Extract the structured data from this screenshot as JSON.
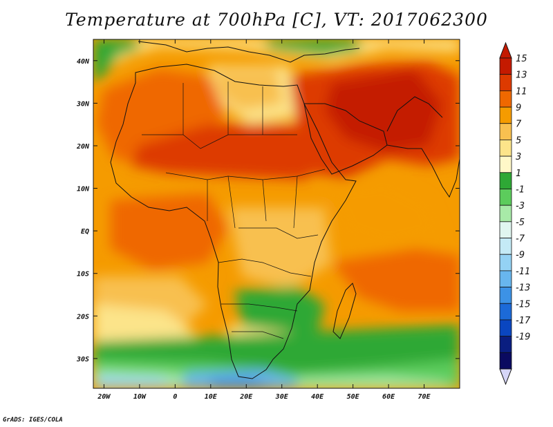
{
  "title": "Temperature at 700hPa [C], VT: 2017062300",
  "credit": "GrADS: IGES/COLA",
  "map": {
    "lon_range": [
      -23,
      80
    ],
    "lat_range": [
      -37,
      45
    ],
    "lat_ticks": [
      {
        "value": 40,
        "label": "40N"
      },
      {
        "value": 30,
        "label": "30N"
      },
      {
        "value": 20,
        "label": "20N"
      },
      {
        "value": 10,
        "label": "10N"
      },
      {
        "value": 0,
        "label": "EQ"
      },
      {
        "value": -10,
        "label": "10S"
      },
      {
        "value": -20,
        "label": "20S"
      },
      {
        "value": -30,
        "label": "30S"
      }
    ],
    "lon_ticks": [
      {
        "value": -20,
        "label": "20W"
      },
      {
        "value": -10,
        "label": "10W"
      },
      {
        "value": 0,
        "label": "0"
      },
      {
        "value": 10,
        "label": "10E"
      },
      {
        "value": 20,
        "label": "20E"
      },
      {
        "value": 30,
        "label": "30E"
      },
      {
        "value": 40,
        "label": "40E"
      },
      {
        "value": 50,
        "label": "50E"
      },
      {
        "value": 60,
        "label": "60E"
      },
      {
        "value": 70,
        "label": "70E"
      }
    ]
  },
  "colorbar": {
    "levels": [
      "15",
      "13",
      "11",
      "9",
      "7",
      "5",
      "3",
      "1",
      "-1",
      "-3",
      "-5",
      "-7",
      "-9",
      "-11",
      "-13",
      "-15",
      "-17",
      "-19"
    ],
    "colors": [
      "#c41a00",
      "#dd3a00",
      "#ef6800",
      "#f59b00",
      "#f8c050",
      "#fce48a",
      "#fff8c8",
      "#2ea835",
      "#5ccc5c",
      "#a8eaa8",
      "#e0f6f0",
      "#c4eaf6",
      "#94d2f4",
      "#68b6ee",
      "#3c92e6",
      "#1c6ad8",
      "#0a46c0",
      "#0a1e80",
      "#0a0a60"
    ],
    "top_arrow_color": "#c41a00",
    "bottom_arrow_color": "#d6d6f8"
  }
}
